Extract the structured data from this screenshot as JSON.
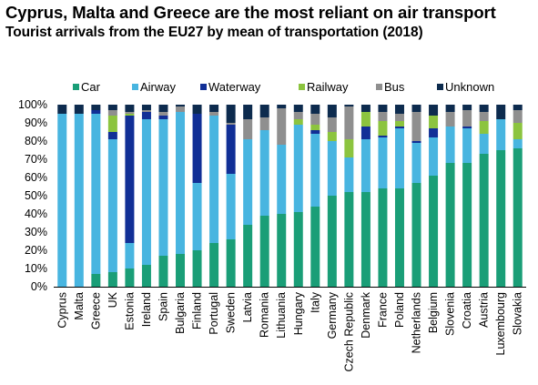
{
  "header": {
    "title": "Cyprus, Malta and Greece are the most reliant on air transport",
    "subtitle": "Tourist arrivals from the EU27 by mean of transportation (2018)"
  },
  "colors": {
    "Car": "#1a9e77",
    "Airway": "#48b5e0",
    "Waterway": "#112f96",
    "Railway": "#8cc43f",
    "Bus": "#8f8f8f",
    "Unknown": "#0d2b4e"
  },
  "chart_data": {
    "type": "bar",
    "stacked": true,
    "title": "Tourist arrivals from the EU27 by mean of transportation (2018)",
    "xlabel": "",
    "ylabel": "",
    "ylim": [
      0,
      100
    ],
    "y_ticks": [
      "0%",
      "10%",
      "20%",
      "30%",
      "40%",
      "50%",
      "60%",
      "70%",
      "80%",
      "90%",
      "100%"
    ],
    "legend_position": "top",
    "grid": false,
    "categories": [
      "Cyprus",
      "Malta",
      "Greece",
      "UK",
      "Estonia",
      "Ireland",
      "Spain",
      "Bulgaria",
      "Finland",
      "Portugal",
      "Sweden",
      "Latvia",
      "Romania",
      "Lithuania",
      "Hungary",
      "Italy",
      "Germany",
      "Czech Republic",
      "Denmark",
      "France",
      "Poland",
      "Netherlands",
      "Belgium",
      "Slovenia",
      "Croatia",
      "Austria",
      "Luxembourg",
      "Slovakia"
    ],
    "series": [
      {
        "name": "Car",
        "values": [
          0,
          0,
          7,
          8,
          10,
          12,
          17,
          18,
          20,
          24,
          26,
          34,
          39,
          40,
          41,
          44,
          50,
          52,
          52,
          54,
          54,
          57,
          61,
          68,
          68,
          73,
          75,
          76
        ]
      },
      {
        "name": "Airway",
        "values": [
          95,
          95,
          88,
          73,
          14,
          80,
          75,
          78,
          37,
          70,
          36,
          47,
          47,
          38,
          48,
          40,
          30,
          19,
          29,
          28,
          33,
          22,
          21,
          20,
          19,
          11,
          17,
          5
        ]
      },
      {
        "name": "Waterway",
        "values": [
          0,
          0,
          2,
          4,
          70,
          4,
          2,
          0,
          38,
          0,
          27,
          0,
          0,
          0,
          0,
          2,
          0,
          0,
          7,
          1,
          1,
          1,
          5,
          0,
          1,
          0,
          0,
          0
        ]
      },
      {
        "name": "Railway",
        "values": [
          0,
          0,
          0,
          9,
          1,
          0,
          0,
          0,
          0,
          0,
          0,
          0,
          0,
          0,
          3,
          3,
          5,
          10,
          8,
          8,
          3,
          0,
          7,
          0,
          0,
          7,
          0,
          9
        ]
      },
      {
        "name": "Bus",
        "values": [
          0,
          0,
          0,
          3,
          1,
          1,
          2,
          3,
          0,
          2,
          1,
          11,
          7,
          20,
          4,
          6,
          8,
          18,
          0,
          5,
          4,
          16,
          0,
          8,
          9,
          5,
          0,
          7
        ]
      },
      {
        "name": "Unknown",
        "values": [
          5,
          5,
          3,
          3,
          4,
          3,
          4,
          1,
          5,
          4,
          10,
          8,
          7,
          2,
          4,
          5,
          7,
          1,
          4,
          4,
          5,
          4,
          6,
          4,
          3,
          4,
          8,
          3
        ]
      }
    ]
  }
}
